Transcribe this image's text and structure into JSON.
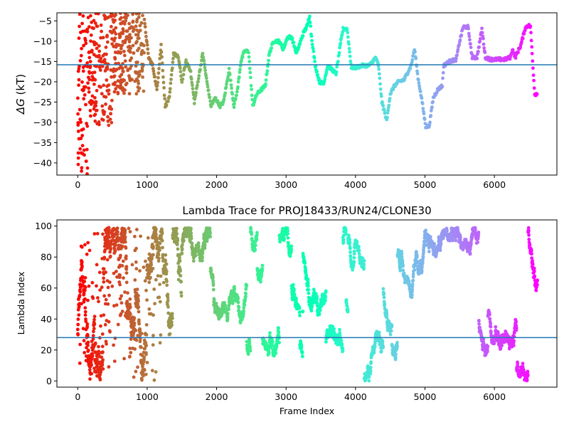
{
  "chart_data": [
    {
      "type": "scatter",
      "title": "",
      "xlabel": "",
      "ylabel": "ΔG (kT)",
      "ylabel_symbol": "ΔG",
      "ylabel_unit": "(kT)",
      "xlim": [
        -300,
        6900
      ],
      "ylim": [
        -43,
        -3
      ],
      "xticks": [
        0,
        1000,
        2000,
        3000,
        4000,
        5000,
        6000
      ],
      "yticks": [
        -40,
        -35,
        -30,
        -25,
        -20,
        -15,
        -10,
        -5
      ],
      "hline": -15.8,
      "hline_color": "#1f77b4",
      "colormap": "rainbow",
      "trace_knots": [
        [
          960,
          -5
        ],
        [
          1020,
          -14
        ],
        [
          1080,
          -16
        ],
        [
          1140,
          -22
        ],
        [
          1200,
          -11
        ],
        [
          1260,
          -26
        ],
        [
          1320,
          -24
        ],
        [
          1380,
          -13
        ],
        [
          1450,
          -14
        ],
        [
          1500,
          -20
        ],
        [
          1560,
          -15
        ],
        [
          1620,
          -17
        ],
        [
          1680,
          -25
        ],
        [
          1740,
          -19
        ],
        [
          1800,
          -13
        ],
        [
          1860,
          -20
        ],
        [
          1920,
          -26
        ],
        [
          1980,
          -24
        ],
        [
          2050,
          -26
        ],
        [
          2100,
          -25
        ],
        [
          2180,
          -17
        ],
        [
          2250,
          -26
        ],
        [
          2300,
          -22
        ],
        [
          2350,
          -15
        ],
        [
          2400,
          -12.5
        ],
        [
          2460,
          -12.5
        ],
        [
          2520,
          -26
        ],
        [
          2580,
          -23
        ],
        [
          2640,
          -22
        ],
        [
          2700,
          -21
        ],
        [
          2760,
          -13
        ],
        [
          2820,
          -10
        ],
        [
          2900,
          -10
        ],
        [
          2960,
          -12
        ],
        [
          3020,
          -9
        ],
        [
          3080,
          -9
        ],
        [
          3150,
          -13
        ],
        [
          3200,
          -10.5
        ],
        [
          3250,
          -8
        ],
        [
          3310,
          -6
        ],
        [
          3340,
          -3.5
        ],
        [
          3360,
          -8
        ],
        [
          3420,
          -16
        ],
        [
          3480,
          -20
        ],
        [
          3540,
          -20.5
        ],
        [
          3600,
          -16
        ],
        [
          3660,
          -17
        ],
        [
          3720,
          -18
        ],
        [
          3790,
          -10
        ],
        [
          3820,
          -7
        ],
        [
          3880,
          -7
        ],
        [
          3940,
          -16.5
        ],
        [
          4000,
          -16.5
        ],
        [
          4100,
          -16
        ],
        [
          4200,
          -16
        ],
        [
          4290,
          -14
        ],
        [
          4330,
          -16
        ],
        [
          4380,
          -25
        ],
        [
          4450,
          -29.5
        ],
        [
          4500,
          -23
        ],
        [
          4560,
          -21
        ],
        [
          4620,
          -20
        ],
        [
          4700,
          -19.5
        ],
        [
          4800,
          -16
        ],
        [
          4850,
          -12
        ],
        [
          4900,
          -19
        ],
        [
          4960,
          -25
        ],
        [
          5010,
          -31
        ],
        [
          5060,
          -31
        ],
        [
          5120,
          -24
        ],
        [
          5180,
          -22
        ],
        [
          5250,
          -21
        ],
        [
          5270,
          -16
        ],
        [
          5350,
          -15
        ],
        [
          5450,
          -14.5
        ],
        [
          5500,
          -10
        ],
        [
          5550,
          -6.5
        ],
        [
          5620,
          -6.5
        ],
        [
          5680,
          -14
        ],
        [
          5750,
          -14
        ],
        [
          5820,
          -7
        ],
        [
          5870,
          -14
        ],
        [
          5950,
          -14.5
        ],
        [
          6050,
          -14.5
        ],
        [
          6150,
          -14.5
        ],
        [
          6230,
          -14
        ],
        [
          6260,
          -12
        ],
        [
          6300,
          -14
        ],
        [
          6380,
          -11
        ],
        [
          6440,
          -7
        ],
        [
          6480,
          -6
        ],
        [
          6520,
          -6.5
        ],
        [
          6580,
          -23
        ],
        [
          6620,
          -23
        ]
      ],
      "early_scatter_x_range": [
        0,
        960
      ],
      "early_scatter_y_range": [
        -43,
        -3
      ]
    },
    {
      "type": "scatter",
      "title": "Lambda Trace for PROJ18433/RUN24/CLONE30",
      "xlabel": "Frame Index",
      "ylabel": "Lambda Index",
      "xlim": [
        -300,
        6900
      ],
      "ylim": [
        -4,
        104
      ],
      "xticks": [
        0,
        1000,
        2000,
        3000,
        4000,
        5000,
        6000
      ],
      "yticks": [
        0,
        20,
        40,
        60,
        80,
        100
      ],
      "hline": 28,
      "hline_color": "#1f77b4",
      "colormap": "rainbow",
      "x_range": [
        0,
        6620
      ],
      "y_range": [
        0,
        99
      ]
    }
  ]
}
